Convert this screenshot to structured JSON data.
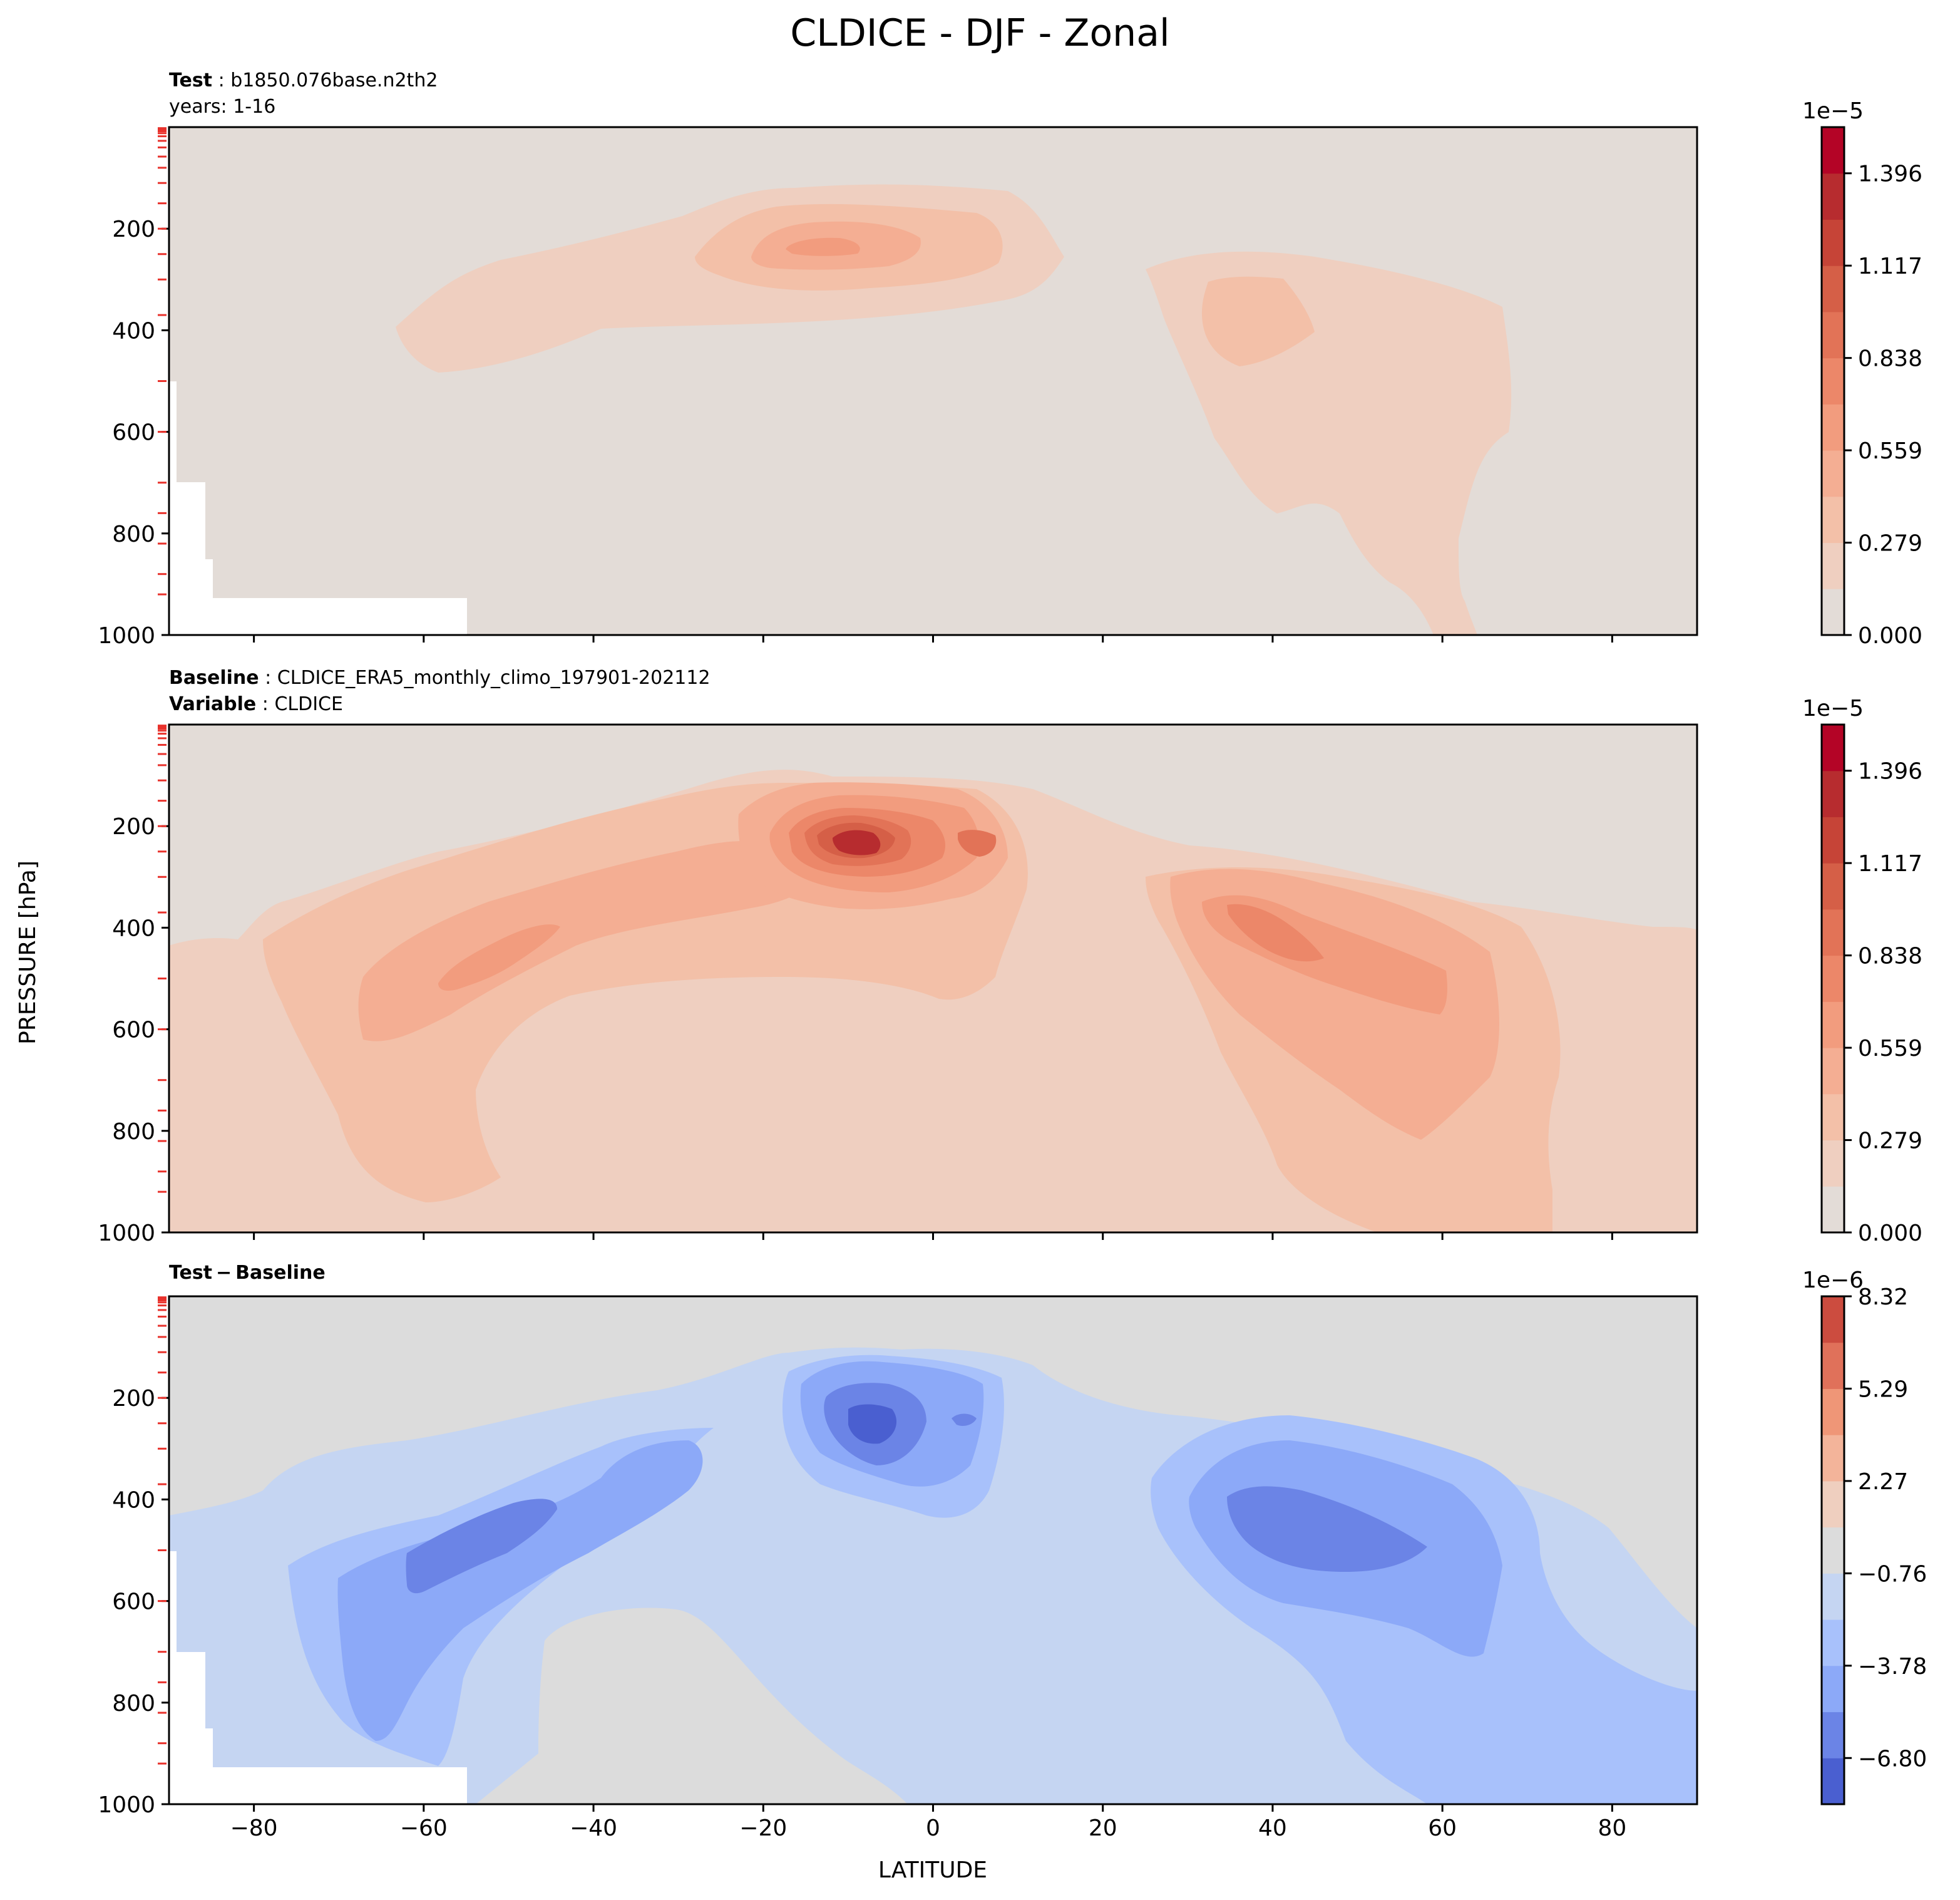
{
  "figure": {
    "title": "CLDICE - DJF - Zonal",
    "ylabel": "PRESSURE [hPa]",
    "xlabel": "LATITUDE"
  },
  "panels": [
    {
      "id": "test",
      "header": [
        {
          "bold": "Test",
          "text": "b1850.076base.n2th2"
        },
        {
          "bold": "",
          "text": "years: 1-16"
        }
      ]
    },
    {
      "id": "baseline",
      "header": [
        {
          "bold": "Baseline",
          "text": "CLDICE_ERA5_monthly_climo_197901-202112"
        },
        {
          "bold": "Variable",
          "text": "CLDICE"
        }
      ]
    },
    {
      "id": "diff",
      "header": [
        {
          "bold": "Test − Baseline",
          "text": ""
        }
      ]
    }
  ],
  "colorbars": [
    {
      "offset": "1e−5",
      "ticks": [
        "0.000",
        "0.279",
        "0.559",
        "0.838",
        "1.117",
        "1.396"
      ],
      "tick_values": [
        0,
        2,
        4,
        6,
        8,
        10
      ],
      "levels": 11
    },
    {
      "offset": "1e−5",
      "ticks": [
        "0.000",
        "0.279",
        "0.559",
        "0.838",
        "1.117",
        "1.396"
      ],
      "tick_values": [
        0,
        2,
        4,
        6,
        8,
        10
      ],
      "levels": 11
    },
    {
      "offset": "1e−6",
      "ticks": [
        "−6.80",
        "−3.78",
        "−0.76",
        "2.27",
        "5.29",
        "8.32"
      ],
      "tick_values": [
        1,
        3,
        5,
        7,
        9,
        11
      ],
      "levels": 11
    }
  ],
  "colors": {
    "warm_scale": [
      "#e3dcd7",
      "#efcfc0",
      "#f3c0a8",
      "#f4ae93",
      "#f29c7e",
      "#ec8769",
      "#e27357",
      "#d55f47",
      "#c64437",
      "#b72c2f",
      "#b40426"
    ],
    "diff_scale": [
      "#4a5fd0",
      "#6b84e6",
      "#8ca9f8",
      "#a8c1fb",
      "#c5d5f2",
      "#dcdcdc",
      "#efcfbf",
      "#f3b49a",
      "#ef9677",
      "#e0715a",
      "#cc4c3f",
      "#bb2c2f"
    ]
  },
  "chart_data": [
    {
      "type": "contour",
      "title": "Test",
      "x_range": [
        -90,
        90
      ],
      "y_range": [
        0,
        1000
      ],
      "y_inverted": true,
      "xticks": [
        -80,
        -60,
        -40,
        -20,
        0,
        20,
        40,
        60,
        80
      ],
      "yticks": [
        200,
        400,
        600,
        800,
        1000
      ],
      "scale_factor": 1e-05,
      "features": [
        {
          "lat": -12,
          "pressure": 250,
          "peak": 7e-06
        },
        {
          "lat": 38,
          "pressure": 380,
          "peak": 4.5e-06
        }
      ]
    },
    {
      "type": "contour",
      "title": "Baseline",
      "x_range": [
        -90,
        90
      ],
      "y_range": [
        0,
        1000
      ],
      "y_inverted": true,
      "xticks": [
        -80,
        -60,
        -40,
        -20,
        0,
        20,
        40,
        60,
        80
      ],
      "yticks": [
        200,
        400,
        600,
        800,
        1000
      ],
      "scale_factor": 1e-05,
      "features": [
        {
          "lat": -8,
          "pressure": 230,
          "peak": 1.45e-05
        },
        {
          "lat": -55,
          "pressure": 480,
          "peak": 8e-06
        },
        {
          "lat": 43,
          "pressure": 460,
          "peak": 9.5e-06
        }
      ]
    },
    {
      "type": "contour",
      "title": "Test − Baseline",
      "x_range": [
        -90,
        90
      ],
      "y_range": [
        0,
        1000
      ],
      "y_inverted": true,
      "xticks": [
        -80,
        -60,
        -40,
        -20,
        0,
        20,
        40,
        60,
        80
      ],
      "yticks": [
        200,
        400,
        600,
        800,
        1000
      ],
      "scale_factor": 1e-06,
      "features": [
        {
          "lat": -8,
          "pressure": 260,
          "peak": -7.5e-06
        },
        {
          "lat": -55,
          "pressure": 500,
          "peak": -5.5e-06
        },
        {
          "lat": 45,
          "pressure": 470,
          "peak": -6e-06
        }
      ]
    }
  ]
}
